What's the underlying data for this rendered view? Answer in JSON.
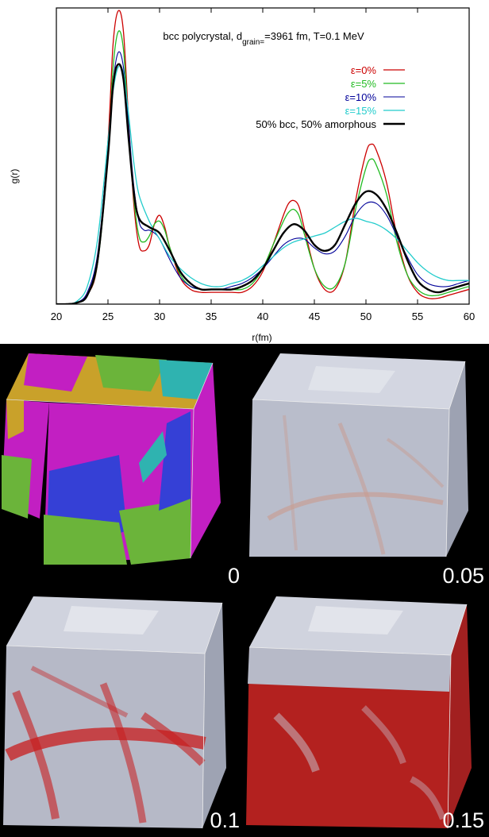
{
  "chart_data": {
    "type": "line",
    "title_parts": {
      "pre": "bcc polycrystal, d",
      "sub": "grain=",
      "post": "=3961 fm, T=0.1 MeV"
    },
    "xlabel": "r(fm)",
    "ylabel": "g(r)",
    "xlim": [
      20,
      60
    ],
    "ylim": [
      0,
      1
    ],
    "xticks": [
      20,
      25,
      30,
      35,
      40,
      45,
      50,
      55,
      60
    ],
    "legend_position": "top-right",
    "series": [
      {
        "name": "ε=0%",
        "color": "#cc0000",
        "width": 1.3,
        "points": [
          [
            20,
            0
          ],
          [
            21,
            0
          ],
          [
            22,
            0.005
          ],
          [
            23,
            0.03
          ],
          [
            24,
            0.14
          ],
          [
            25,
            0.55
          ],
          [
            25.5,
            0.88
          ],
          [
            26,
            0.99
          ],
          [
            26.5,
            0.92
          ],
          [
            27,
            0.62
          ],
          [
            27.5,
            0.34
          ],
          [
            28,
            0.2
          ],
          [
            28.5,
            0.18
          ],
          [
            29,
            0.2
          ],
          [
            29.5,
            0.27
          ],
          [
            30,
            0.3
          ],
          [
            30.5,
            0.26
          ],
          [
            31,
            0.19
          ],
          [
            32,
            0.09
          ],
          [
            33,
            0.05
          ],
          [
            34,
            0.04
          ],
          [
            35,
            0.04
          ],
          [
            36,
            0.04
          ],
          [
            37,
            0.04
          ],
          [
            38,
            0.04
          ],
          [
            39,
            0.06
          ],
          [
            40,
            0.11
          ],
          [
            41,
            0.2
          ],
          [
            42,
            0.3
          ],
          [
            42.5,
            0.34
          ],
          [
            43,
            0.35
          ],
          [
            43.5,
            0.33
          ],
          [
            44,
            0.26
          ],
          [
            45,
            0.12
          ],
          [
            46,
            0.05
          ],
          [
            47,
            0.05
          ],
          [
            48,
            0.14
          ],
          [
            49,
            0.35
          ],
          [
            50,
            0.51
          ],
          [
            50.5,
            0.54
          ],
          [
            51,
            0.52
          ],
          [
            52,
            0.41
          ],
          [
            53,
            0.23
          ],
          [
            54,
            0.1
          ],
          [
            55,
            0.04
          ],
          [
            56,
            0.02
          ],
          [
            57,
            0.02
          ],
          [
            58,
            0.03
          ],
          [
            59,
            0.04
          ],
          [
            60,
            0.05
          ]
        ]
      },
      {
        "name": "ε=5%",
        "color": "#22bb22",
        "width": 1.3,
        "points": [
          [
            20,
            0
          ],
          [
            21,
            0
          ],
          [
            22,
            0.005
          ],
          [
            23,
            0.03
          ],
          [
            24,
            0.14
          ],
          [
            25,
            0.5
          ],
          [
            25.5,
            0.8
          ],
          [
            26,
            0.92
          ],
          [
            26.5,
            0.86
          ],
          [
            27,
            0.6
          ],
          [
            27.5,
            0.36
          ],
          [
            28,
            0.23
          ],
          [
            28.5,
            0.21
          ],
          [
            29,
            0.23
          ],
          [
            29.5,
            0.27
          ],
          [
            30,
            0.28
          ],
          [
            30.5,
            0.25
          ],
          [
            31,
            0.19
          ],
          [
            32,
            0.1
          ],
          [
            33,
            0.06
          ],
          [
            34,
            0.05
          ],
          [
            35,
            0.05
          ],
          [
            36,
            0.05
          ],
          [
            37,
            0.05
          ],
          [
            38,
            0.05
          ],
          [
            39,
            0.07
          ],
          [
            40,
            0.12
          ],
          [
            41,
            0.2
          ],
          [
            42,
            0.28
          ],
          [
            42.5,
            0.31
          ],
          [
            43,
            0.32
          ],
          [
            43.5,
            0.3
          ],
          [
            44,
            0.24
          ],
          [
            45,
            0.12
          ],
          [
            46,
            0.06
          ],
          [
            47,
            0.06
          ],
          [
            48,
            0.14
          ],
          [
            49,
            0.32
          ],
          [
            50,
            0.46
          ],
          [
            50.5,
            0.49
          ],
          [
            51,
            0.47
          ],
          [
            52,
            0.37
          ],
          [
            53,
            0.21
          ],
          [
            54,
            0.1
          ],
          [
            55,
            0.05
          ],
          [
            56,
            0.03
          ],
          [
            57,
            0.03
          ],
          [
            58,
            0.04
          ],
          [
            59,
            0.05
          ],
          [
            60,
            0.06
          ]
        ]
      },
      {
        "name": "ε=10%",
        "color": "#000099",
        "width": 1.1,
        "points": [
          [
            20,
            0
          ],
          [
            21,
            0
          ],
          [
            22,
            0.005
          ],
          [
            23,
            0.04
          ],
          [
            24,
            0.17
          ],
          [
            25,
            0.52
          ],
          [
            25.5,
            0.75
          ],
          [
            26,
            0.85
          ],
          [
            26.5,
            0.8
          ],
          [
            27,
            0.6
          ],
          [
            27.5,
            0.4
          ],
          [
            28,
            0.28
          ],
          [
            28.5,
            0.25
          ],
          [
            29,
            0.25
          ],
          [
            29.5,
            0.24
          ],
          [
            30,
            0.22
          ],
          [
            31,
            0.15
          ],
          [
            32,
            0.09
          ],
          [
            33,
            0.06
          ],
          [
            34,
            0.05
          ],
          [
            35,
            0.05
          ],
          [
            36,
            0.05
          ],
          [
            37,
            0.06
          ],
          [
            38,
            0.07
          ],
          [
            39,
            0.09
          ],
          [
            40,
            0.12
          ],
          [
            41,
            0.16
          ],
          [
            42,
            0.2
          ],
          [
            43,
            0.22
          ],
          [
            44,
            0.22
          ],
          [
            45,
            0.19
          ],
          [
            46,
            0.17
          ],
          [
            47,
            0.18
          ],
          [
            48,
            0.23
          ],
          [
            49,
            0.3
          ],
          [
            50,
            0.34
          ],
          [
            51,
            0.34
          ],
          [
            52,
            0.3
          ],
          [
            53,
            0.23
          ],
          [
            54,
            0.16
          ],
          [
            55,
            0.1
          ],
          [
            56,
            0.07
          ],
          [
            57,
            0.06
          ],
          [
            58,
            0.06
          ],
          [
            59,
            0.07
          ],
          [
            60,
            0.08
          ]
        ]
      },
      {
        "name": "ε=15%",
        "color": "#22cccc",
        "width": 1.3,
        "points": [
          [
            20,
            0
          ],
          [
            21,
            0
          ],
          [
            22,
            0.01
          ],
          [
            23,
            0.06
          ],
          [
            24,
            0.22
          ],
          [
            25,
            0.55
          ],
          [
            25.5,
            0.72
          ],
          [
            26,
            0.8
          ],
          [
            26.5,
            0.78
          ],
          [
            27,
            0.64
          ],
          [
            27.5,
            0.48
          ],
          [
            28,
            0.37
          ],
          [
            29,
            0.28
          ],
          [
            30,
            0.22
          ],
          [
            31,
            0.16
          ],
          [
            32,
            0.12
          ],
          [
            33,
            0.09
          ],
          [
            34,
            0.07
          ],
          [
            35,
            0.06
          ],
          [
            36,
            0.06
          ],
          [
            37,
            0.07
          ],
          [
            38,
            0.08
          ],
          [
            39,
            0.1
          ],
          [
            40,
            0.13
          ],
          [
            41,
            0.16
          ],
          [
            42,
            0.19
          ],
          [
            43,
            0.21
          ],
          [
            44,
            0.22
          ],
          [
            45,
            0.23
          ],
          [
            46,
            0.24
          ],
          [
            47,
            0.26
          ],
          [
            48,
            0.28
          ],
          [
            49,
            0.29
          ],
          [
            50,
            0.28
          ],
          [
            51,
            0.27
          ],
          [
            52,
            0.25
          ],
          [
            53,
            0.22
          ],
          [
            54,
            0.18
          ],
          [
            55,
            0.14
          ],
          [
            56,
            0.11
          ],
          [
            57,
            0.09
          ],
          [
            58,
            0.08
          ],
          [
            59,
            0.08
          ],
          [
            60,
            0.08
          ]
        ]
      },
      {
        "name": "50% bcc, 50% amorphous",
        "color": "#000000",
        "width": 2.4,
        "points": [
          [
            20,
            0
          ],
          [
            21,
            0
          ],
          [
            22,
            0.005
          ],
          [
            23,
            0.03
          ],
          [
            24,
            0.15
          ],
          [
            25,
            0.5
          ],
          [
            25.5,
            0.74
          ],
          [
            26,
            0.81
          ],
          [
            26.5,
            0.76
          ],
          [
            27,
            0.56
          ],
          [
            27.5,
            0.38
          ],
          [
            28,
            0.29
          ],
          [
            29,
            0.26
          ],
          [
            30,
            0.24
          ],
          [
            31,
            0.18
          ],
          [
            32,
            0.11
          ],
          [
            33,
            0.07
          ],
          [
            34,
            0.05
          ],
          [
            35,
            0.05
          ],
          [
            36,
            0.05
          ],
          [
            37,
            0.05
          ],
          [
            38,
            0.06
          ],
          [
            39,
            0.08
          ],
          [
            40,
            0.12
          ],
          [
            41,
            0.18
          ],
          [
            42,
            0.24
          ],
          [
            43,
            0.27
          ],
          [
            44,
            0.25
          ],
          [
            45,
            0.2
          ],
          [
            46,
            0.18
          ],
          [
            47,
            0.2
          ],
          [
            48,
            0.27
          ],
          [
            49,
            0.34
          ],
          [
            50,
            0.38
          ],
          [
            51,
            0.37
          ],
          [
            52,
            0.32
          ],
          [
            53,
            0.24
          ],
          [
            54,
            0.15
          ],
          [
            55,
            0.08
          ],
          [
            56,
            0.05
          ],
          [
            57,
            0.04
          ],
          [
            58,
            0.05
          ],
          [
            59,
            0.06
          ],
          [
            60,
            0.07
          ]
        ]
      }
    ]
  },
  "panels": [
    {
      "label": "0",
      "style": "grains"
    },
    {
      "label": "0.05",
      "style": "white"
    },
    {
      "label": "0.1",
      "style": "some-red"
    },
    {
      "label": "0.15",
      "style": "much-red"
    }
  ],
  "colors": {
    "grain_magenta": "#c21fc2",
    "grain_yellow": "#c9a12a",
    "grain_green": "#6bb43a",
    "grain_blue": "#3540d6",
    "grain_teal": "#2fb3b0",
    "atoms_white": "#c8ccd8",
    "atoms_red": "#cc1d1d"
  }
}
